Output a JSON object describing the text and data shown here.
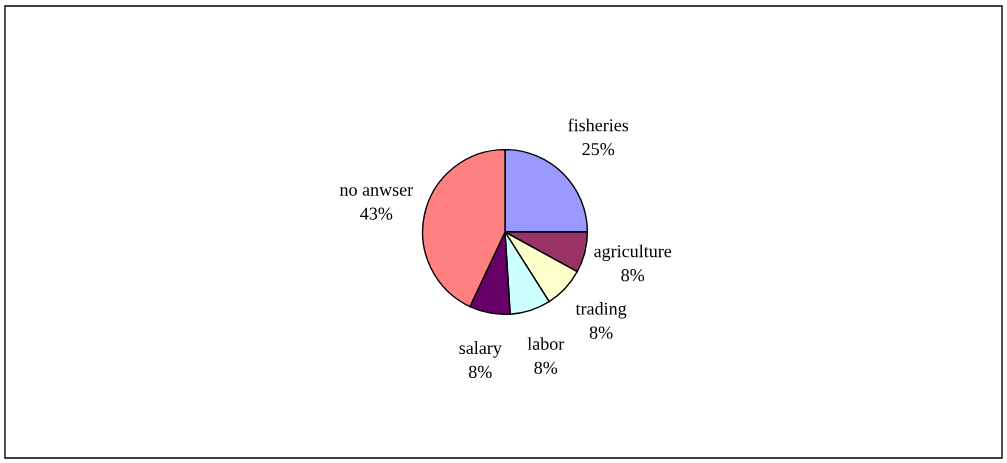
{
  "chart_data": {
    "type": "pie",
    "categories": [
      "fisheries",
      "agriculture",
      "trading",
      "labor",
      "salary",
      "no anwser"
    ],
    "values": [
      25,
      8,
      8,
      8,
      8,
      43
    ],
    "value_labels": [
      "25%",
      "8%",
      "8%",
      "8%",
      "8%",
      "43%"
    ],
    "colors": [
      "#9999ff",
      "#993366",
      "#ffffcc",
      "#ccffff",
      "#660066",
      "#ff8080"
    ],
    "legend": false
  }
}
